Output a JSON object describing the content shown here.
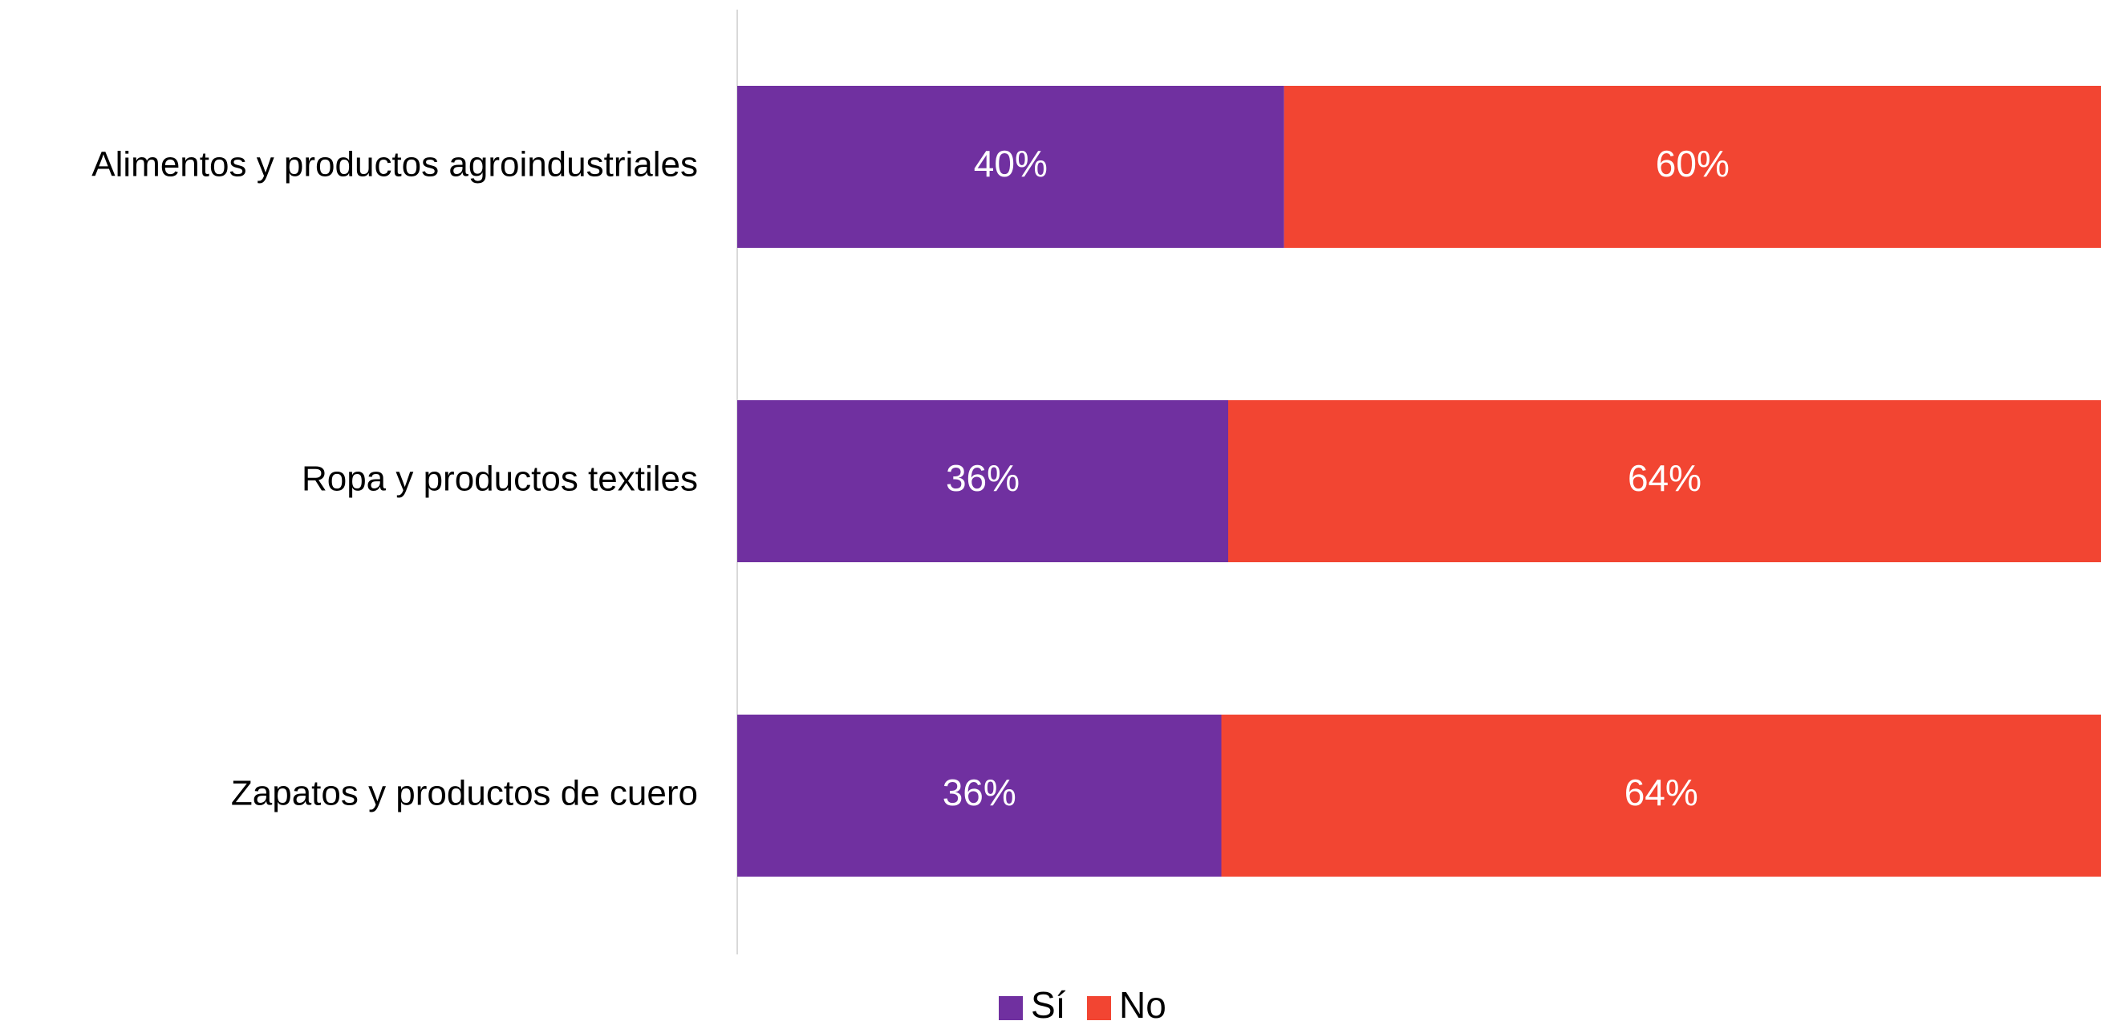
{
  "chart_data": {
    "type": "bar",
    "orientation": "horizontal",
    "stacked": true,
    "categories": [
      "Alimentos y productos agroindustriales",
      "Ropa y productos textiles",
      "Zapatos y productos de cuero"
    ],
    "series": [
      {
        "name": "Sí",
        "color": "#7030a0",
        "values": [
          40.1,
          36.0,
          35.5
        ],
        "labels": [
          "40%",
          "36%",
          "36%"
        ]
      },
      {
        "name": "No",
        "color": "#f24532",
        "values": [
          59.9,
          64.0,
          64.5
        ],
        "labels": [
          "60%",
          "64%",
          "64%"
        ]
      }
    ],
    "xlim": [
      0,
      100
    ],
    "title": "",
    "xlabel": "",
    "ylabel": "",
    "grid": false,
    "legend": "bottom-center"
  }
}
